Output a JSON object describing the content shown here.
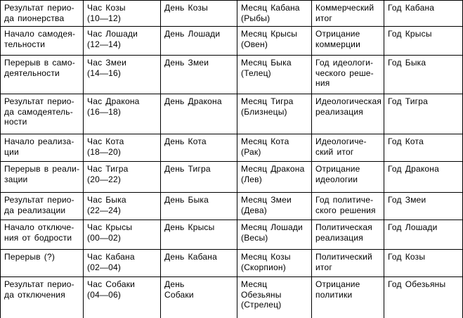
{
  "table": {
    "text_color": "#000000",
    "border_color": "#000000",
    "background_color": "#ffffff",
    "rows": [
      [
        "Результат перио-\nда пионерства",
        "Час Козы\n(10—12)",
        "День Козы",
        "Месяц Кабана\n(Рыбы)",
        "Коммерческий\nитог",
        "Год Кабана"
      ],
      [
        "Начало самодея-\nтельности",
        "Час Лошади\n(12—14)",
        "День Лошади",
        "Месяц Крысы\n(Овен)",
        "Отрицание\nкоммерции",
        "Год Крысы"
      ],
      [
        "Перерыв в само-\nдеятельности",
        "Час Змеи\n(14—16)",
        "День Змеи",
        "Месяц Быка\n(Телец)",
        "Год идеологи-\nческого реше-\nния",
        "Год Быка"
      ],
      [
        "Результат перио-\nда самодеятель-\nности",
        "Час Дракона\n(16—18)",
        "День Дракона",
        "Месяц Тигра\n(Близнецы)",
        "Идеологическая\nреализация",
        "Год Тигра"
      ],
      [
        "Начало реализа-\nции",
        "Час Кота\n(18—20)",
        "День Кота",
        "Месяц Кота\n(Рак)",
        "Идеологиче-\nский итог",
        "Год Кота"
      ],
      [
        "Перерыв в реали-\nзации",
        "Час Тигра\n(20—22)",
        "День Тигра",
        "Месяц Дракона\n(Лев)",
        "Отрицание\nидеологии",
        "Год Дракона"
      ],
      [
        "Результат перио-\nда реализации",
        "Час Быка\n(22—24)",
        "День Быка",
        "Месяц Змеи\n(Дева)",
        "Год политиче-\nского решения",
        "Год Змеи"
      ],
      [
        "Начало отключе-\nния от бодрости",
        "Час Крысы\n(00—02)",
        "День Крысы",
        "Месяц Лошади\n(Весы)",
        "Политическая\nреализация",
        "Год Лошади"
      ],
      [
        "Перерыв (?)",
        "Час Кабана\n(02—04)",
        "День Кабана",
        "Месяц Козы\n(Скорпион)",
        "Политический\nитог",
        "Год Козы"
      ],
      [
        "Результат перио-\nда отключения",
        "Час Собаки\n(04—06)",
        "День\nСобаки",
        "Месяц\nОбезьяны\n(Стрелец)",
        "Отрицание\nполитики",
        "Год Обезьяны"
      ]
    ]
  }
}
